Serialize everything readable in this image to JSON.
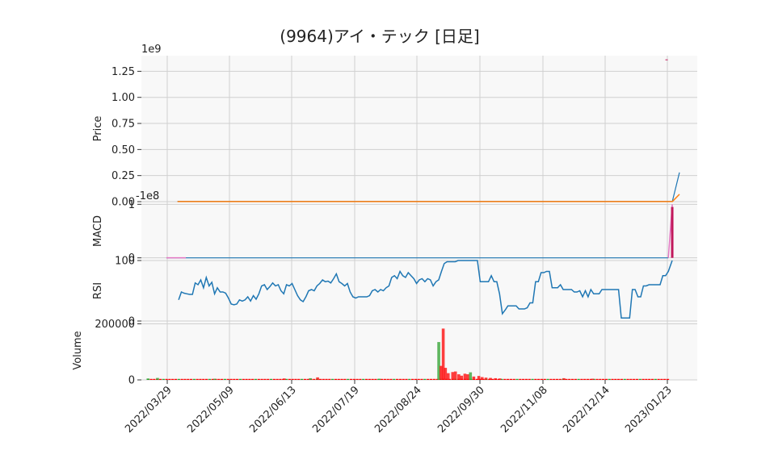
{
  "chart_data": {
    "type": "line",
    "title": "(9964)アイ・テック [日足]",
    "x_tick_labels": [
      "2022/03/29",
      "2022/05/09",
      "2022/06/13",
      "2022/07/19",
      "2022/08/24",
      "2022/09/30",
      "2022/11/08",
      "2022/12/14",
      "2023/01/23"
    ],
    "colors": {
      "price": "#1f77b4",
      "moving_average": "#ff7f0e",
      "macd": "#1f77b4",
      "macd_signal": "#e377c2",
      "macd_hist": "#c2185b",
      "rsi": "#1f77b4",
      "volume_up": "#2ca02c",
      "volume_down": "#ff0000",
      "panel_bg": "#f8f8f8",
      "grid": "#d0d0d0"
    },
    "panels": [
      {
        "name": "price",
        "ylabel": "Price",
        "offset_label": "1e9",
        "yticks": [
          "0.00",
          "0.25",
          "0.50",
          "0.75",
          "1.00",
          "1.25"
        ],
        "ylim": [
          0,
          1.4
        ],
        "series": [
          {
            "kind": "price",
            "values_1e9": [
              0.003,
              0.003,
              0.003,
              0.003,
              0.003,
              0.003,
              0.003,
              0.003,
              0.003,
              0.003,
              0.003,
              0.003,
              0.28
            ]
          },
          {
            "kind": "moving_average",
            "values_1e9": [
              0.001,
              0.001,
              0.001,
              0.001,
              0.001,
              0.001,
              0.001,
              0.001,
              0.001,
              0.001,
              0.001,
              0.001,
              0.07
            ]
          }
        ],
        "marker": {
          "x_fraction": 0.995,
          "value_1e9": 1.36
        }
      },
      {
        "name": "macd",
        "ylabel": "MACD",
        "offset_label": "-1e8",
        "yticks": [
          "1",
          "0"
        ],
        "ylim": [
          -0.05,
          1.05
        ],
        "flat_values": {
          "macd": 0.0,
          "signal": 0.0
        },
        "end_spike": {
          "macd_max": 1.0,
          "hist_max": 0.95
        }
      },
      {
        "name": "rsi",
        "ylabel": "RSI",
        "yticks": [
          "100",
          "0"
        ],
        "ylim": [
          0,
          100
        ],
        "start_fraction": 0.067,
        "values": [
          35,
          48,
          46,
          45,
          44,
          44,
          63,
          60,
          68,
          55,
          72,
          58,
          64,
          45,
          55,
          48,
          48,
          46,
          38,
          28,
          27,
          28,
          35,
          33,
          35,
          40,
          33,
          42,
          36,
          45,
          58,
          60,
          52,
          57,
          63,
          58,
          60,
          50,
          45,
          60,
          58,
          62,
          52,
          42,
          35,
          32,
          40,
          50,
          52,
          50,
          58,
          62,
          68,
          65,
          66,
          63,
          70,
          78,
          65,
          62,
          58,
          62,
          48,
          40,
          38,
          40,
          40,
          40,
          40,
          42,
          50,
          52,
          48,
          52,
          50,
          55,
          58,
          72,
          75,
          70,
          82,
          75,
          72,
          80,
          75,
          70,
          62,
          68,
          70,
          65,
          70,
          68,
          58,
          65,
          68,
          82,
          95,
          98,
          98,
          98,
          98,
          100,
          100,
          100,
          100,
          100,
          100,
          100,
          100,
          65,
          65,
          65,
          65,
          75,
          65,
          65,
          45,
          12,
          18,
          25,
          25,
          25,
          25,
          20,
          20,
          20,
          22,
          30,
          30,
          65,
          65,
          80,
          80,
          82,
          82,
          55,
          55,
          55,
          60,
          52,
          52,
          52,
          52,
          48,
          48,
          50,
          40,
          50,
          40,
          52,
          45,
          45,
          45,
          52,
          52,
          52,
          52,
          52,
          52,
          52,
          5,
          5,
          5,
          5,
          52,
          52,
          40,
          40,
          58,
          58,
          60,
          60,
          60,
          60,
          60,
          75,
          75,
          82,
          100
        ]
      },
      {
        "name": "volume",
        "ylabel": "Volume",
        "yticks": [
          "200000",
          "0"
        ],
        "ylim": [
          0,
          210000
        ],
        "big_bars": [
          {
            "x_fraction": 0.535,
            "value": 135000,
            "up": true
          },
          {
            "x_fraction": 0.539,
            "value": 50000,
            "up": false
          },
          {
            "x_fraction": 0.543,
            "value": 183000,
            "up": false
          },
          {
            "x_fraction": 0.547,
            "value": 43000,
            "up": false
          },
          {
            "x_fraction": 0.552,
            "value": 24000,
            "up": false
          },
          {
            "x_fraction": 0.56,
            "value": 28000,
            "up": false
          },
          {
            "x_fraction": 0.565,
            "value": 30000,
            "up": false
          },
          {
            "x_fraction": 0.571,
            "value": 20000,
            "up": false
          },
          {
            "x_fraction": 0.576,
            "value": 15000,
            "up": false
          },
          {
            "x_fraction": 0.582,
            "value": 22000,
            "up": false
          },
          {
            "x_fraction": 0.587,
            "value": 20000,
            "up": false
          },
          {
            "x_fraction": 0.592,
            "value": 27000,
            "up": true
          },
          {
            "x_fraction": 0.598,
            "value": 12000,
            "up": false
          },
          {
            "x_fraction": 0.607,
            "value": 14000,
            "up": false
          },
          {
            "x_fraction": 0.613,
            "value": 10000,
            "up": false
          },
          {
            "x_fraction": 0.62,
            "value": 8000,
            "up": false
          },
          {
            "x_fraction": 0.628,
            "value": 7000,
            "up": false
          },
          {
            "x_fraction": 0.637,
            "value": 6000,
            "up": false
          },
          {
            "x_fraction": 0.645,
            "value": 5000,
            "up": false
          },
          {
            "x_fraction": 0.012,
            "value": 5000,
            "up": true
          },
          {
            "x_fraction": 0.029,
            "value": 7000,
            "up": true
          },
          {
            "x_fraction": 0.132,
            "value": 4000,
            "up": true
          },
          {
            "x_fraction": 0.257,
            "value": 5000,
            "up": false
          },
          {
            "x_fraction": 0.304,
            "value": 6000,
            "up": true
          },
          {
            "x_fraction": 0.317,
            "value": 9000,
            "up": false
          },
          {
            "x_fraction": 0.428,
            "value": 4000,
            "up": true
          },
          {
            "x_fraction": 0.76,
            "value": 6000,
            "up": false
          },
          {
            "x_fraction": 0.812,
            "value": 4000,
            "up": false
          }
        ]
      }
    ]
  }
}
